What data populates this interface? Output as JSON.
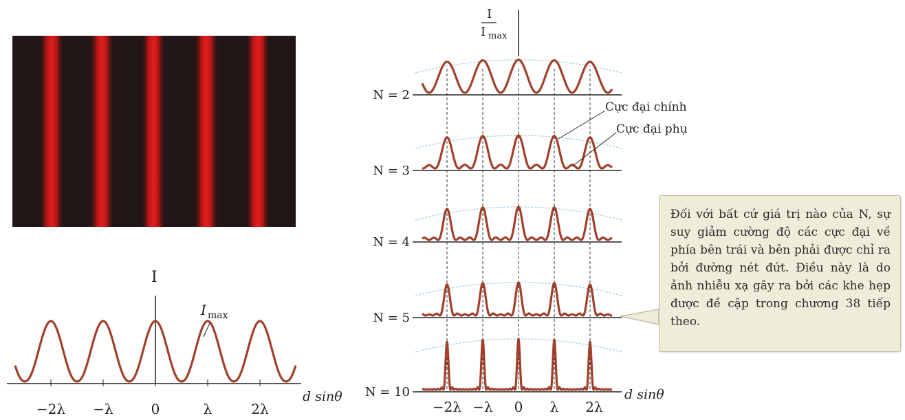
{
  "fringe_image": {
    "background_color": "#231617",
    "fringe_color": "#d41a1a"
  },
  "single_plot": {
    "y_label": "I",
    "peak_label_main": "I",
    "peak_label_sub": "max",
    "x_label": "d sinθ",
    "ticks": [
      "−2λ",
      "−λ",
      "0",
      "λ",
      "2λ"
    ],
    "curve_color": "#a0402a"
  },
  "multi_plot": {
    "y_label_num": "I",
    "y_label_den_main": "I",
    "y_label_den_sub": "max",
    "rows": [
      {
        "label": "N = 2",
        "n": 2
      },
      {
        "label": "N = 3",
        "n": 3
      },
      {
        "label": "N = 4",
        "n": 4
      },
      {
        "label": "N = 5",
        "n": 5
      },
      {
        "label": "N = 10",
        "n": 10
      }
    ],
    "x_label": "d sinθ",
    "ticks": [
      "−2λ",
      "−λ",
      "0",
      "λ",
      "2λ"
    ],
    "callout_principal": "Cực đại chính",
    "callout_secondary": "Cực đại phụ",
    "curve_color": "#a0402a",
    "envelope_color": "#9fc8e4"
  },
  "note": {
    "text": "Đối với bất cứ giá trị nào của N, sự suy giảm cường độ các cực đại về phía bên trái và bên phải được chỉ ra bởi đường nét đứt. Điều này là do ảnh nhiễu xạ gây ra bởi các khe hẹp được đề cập trong chương 38 tiếp theo."
  }
}
